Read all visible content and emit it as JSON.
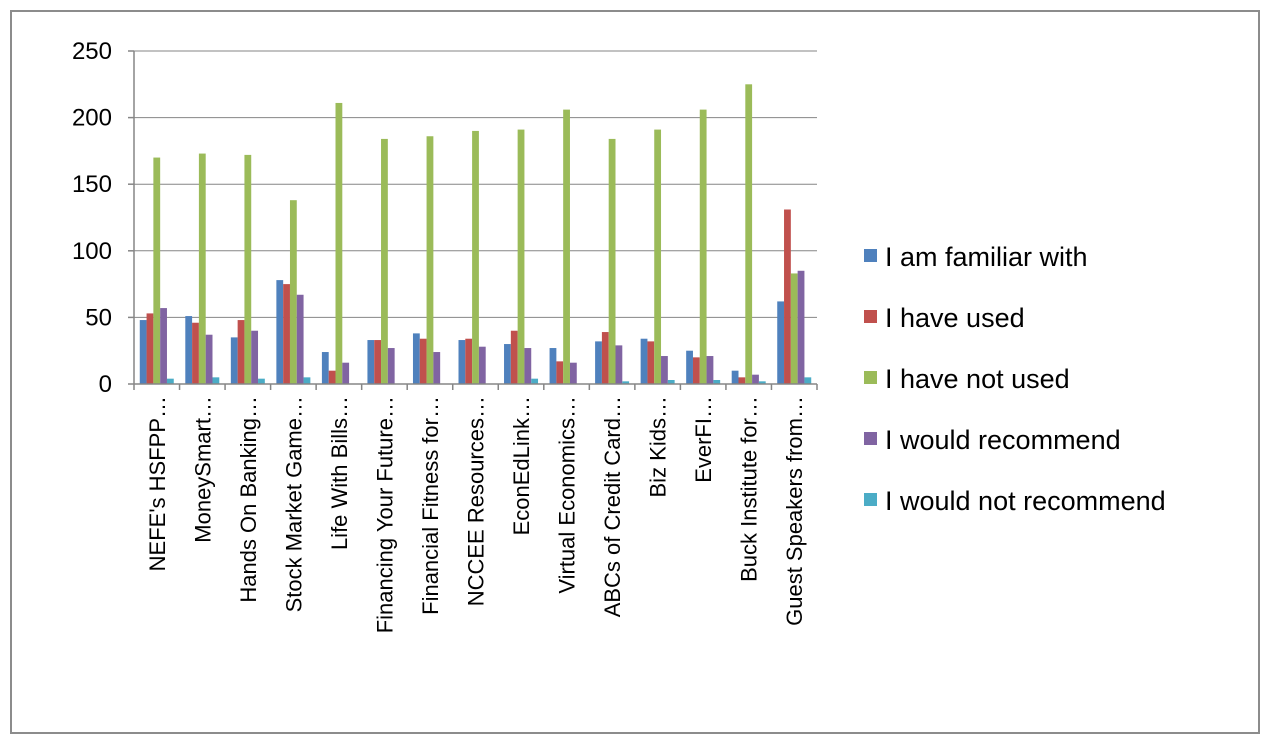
{
  "chart_data": {
    "type": "bar",
    "title": "",
    "xlabel": "",
    "ylabel": "",
    "ylim": [
      0,
      250
    ],
    "yticks": [
      0,
      50,
      100,
      150,
      200,
      250
    ],
    "grid": true,
    "legend_position": "right",
    "categories": [
      "NEFE's HSFPP…",
      "MoneySmart…",
      "Hands On Banking…",
      "Stock Market Game…",
      "Life With Bills…",
      "Financing Your Future…",
      "Financial Fitness for…",
      "NCCEE Resources…",
      "EconEdLink…",
      "Virtual Economics…",
      "ABCs of Credit Card…",
      "Biz Kids…",
      "EverFI…",
      "Buck Institute for…",
      "Guest Speakers from…"
    ],
    "series": [
      {
        "name": "I am familiar with",
        "color": "#4F81BD",
        "values": [
          48,
          51,
          35,
          78,
          24,
          33,
          38,
          33,
          30,
          27,
          32,
          34,
          25,
          10,
          62
        ]
      },
      {
        "name": "I have used",
        "color": "#C0504D",
        "values": [
          53,
          46,
          48,
          75,
          10,
          33,
          34,
          34,
          40,
          17,
          39,
          32,
          20,
          5,
          131
        ]
      },
      {
        "name": "I have not used",
        "color": "#9BBB59",
        "values": [
          170,
          173,
          172,
          138,
          211,
          184,
          186,
          190,
          191,
          206,
          184,
          191,
          206,
          225,
          83
        ]
      },
      {
        "name": "I would recommend",
        "color": "#8064A2",
        "values": [
          57,
          37,
          40,
          67,
          16,
          27,
          24,
          28,
          27,
          16,
          29,
          21,
          21,
          7,
          85
        ]
      },
      {
        "name": "I would not recommend",
        "color": "#4BACC6",
        "values": [
          4,
          5,
          4,
          5,
          0,
          0,
          0,
          0,
          4,
          0,
          2,
          3,
          3,
          2,
          5
        ]
      }
    ]
  }
}
